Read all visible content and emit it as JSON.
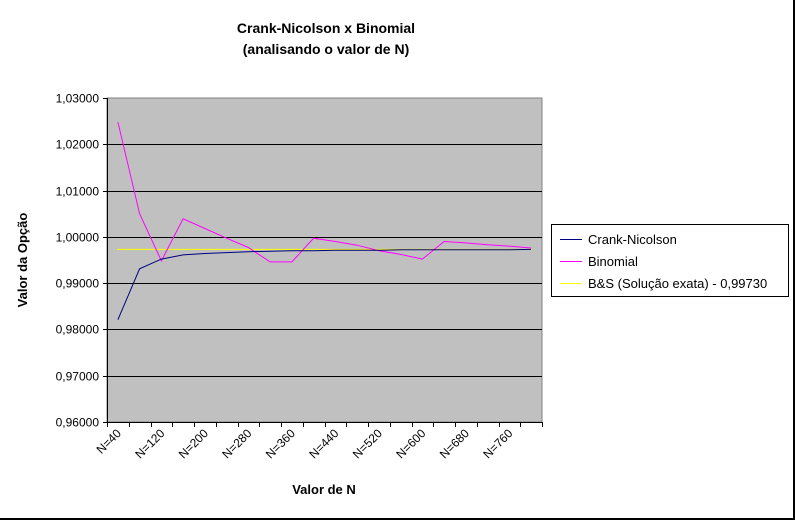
{
  "chart_data": {
    "type": "line",
    "title_line1": "Crank-Nicolson x Binomial",
    "title_line2": "(analisando o valor de N)",
    "xlabel": "Valor de N",
    "ylabel": "Valor da Opção",
    "ylim": [
      0.96,
      1.03
    ],
    "yticks": [
      "1,03000",
      "1,02000",
      "1,01000",
      "1,00000",
      "0,99000",
      "0,98000",
      "0,97000",
      "0,96000"
    ],
    "ytick_values": [
      1.03,
      1.02,
      1.01,
      1.0,
      0.99,
      0.98,
      0.97,
      0.96
    ],
    "x": [
      40,
      80,
      120,
      160,
      200,
      240,
      280,
      320,
      360,
      400,
      440,
      480,
      520,
      560,
      600,
      640,
      680,
      720,
      760,
      800
    ],
    "xtick_labels": [
      "N=40",
      "N=120",
      "N=200",
      "N=280",
      "N=360",
      "N=440",
      "N=520",
      "N=600",
      "N=680",
      "N=760"
    ],
    "grid": true,
    "plot_bg": "#c0c0c0",
    "legend_position": "right",
    "series": [
      {
        "name": "Crank-Nicolson",
        "color": "#000080",
        "values": [
          0.9821,
          0.9931,
          0.9952,
          0.9961,
          0.9964,
          0.9966,
          0.9968,
          0.9969,
          0.997,
          0.997,
          0.9971,
          0.9971,
          0.9971,
          0.9972,
          0.9972,
          0.9972,
          0.9972,
          0.9972,
          0.9972,
          0.9973
        ]
      },
      {
        "name": "Binomial",
        "color": "#ff00ff",
        "values": [
          1.0248,
          1.005,
          0.9948,
          1.0039,
          1.0018,
          0.9997,
          0.9977,
          0.9946,
          0.9946,
          0.9997,
          0.999,
          0.9982,
          0.997,
          0.9962,
          0.9952,
          0.999,
          0.9987,
          0.9983,
          0.998,
          0.9976
        ]
      },
      {
        "name": "B&S (Solução exata) - 0,99730",
        "color": "#ffff00",
        "values": [
          0.9973,
          0.9973,
          0.9973,
          0.9973,
          0.9973,
          0.9973,
          0.9973,
          0.9973,
          0.9973,
          0.9973,
          0.9973,
          0.9973,
          0.9973,
          0.9973,
          0.9973,
          0.9973,
          0.9973,
          0.9973,
          0.9973,
          0.9973
        ]
      }
    ]
  }
}
